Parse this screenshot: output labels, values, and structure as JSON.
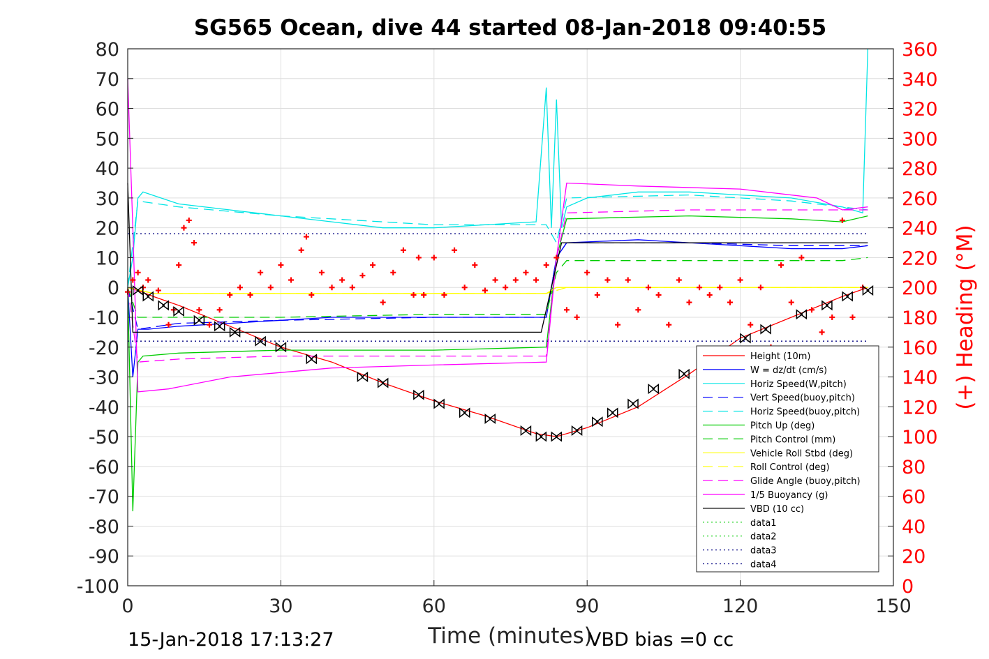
{
  "chart_data": {
    "type": "line",
    "title": "SG565 Ocean, dive 44 started 08-Jan-2018 09:40:55",
    "xlabel": "Time (minutes)",
    "ylabel": "",
    "y2label": "(+) Heading (°M)",
    "xlim": [
      0,
      150
    ],
    "ylim": [
      -100,
      80
    ],
    "y2lim": [
      0,
      360
    ],
    "x_ticks": [
      0,
      30,
      60,
      90,
      120,
      150
    ],
    "y_ticks": [
      -100,
      -90,
      -80,
      -70,
      -60,
      -50,
      -40,
      -30,
      -20,
      -10,
      0,
      10,
      20,
      30,
      40,
      50,
      60,
      70,
      80
    ],
    "y2_ticks": [
      0,
      20,
      40,
      60,
      80,
      100,
      120,
      140,
      160,
      180,
      200,
      220,
      240,
      260,
      280,
      300,
      320,
      340,
      360
    ],
    "grid": true,
    "legend_position": "bottom-right",
    "footer_left": "15-Jan-2018 17:13:27",
    "footer_right": "VBD bias =0 cc",
    "series": [
      {
        "name": "Height (10m)",
        "color": "#ff0000",
        "style": "solid",
        "x": [
          0,
          2,
          5,
          10,
          20,
          30,
          40,
          50,
          60,
          70,
          80,
          84,
          90,
          100,
          110,
          120,
          130,
          140,
          145
        ],
        "y": [
          0,
          -1,
          -3,
          -6,
          -13,
          -20,
          -25,
          -32,
          -38,
          -43,
          -49,
          -50,
          -47,
          -40,
          -29,
          -17,
          -10,
          -3,
          0
        ]
      },
      {
        "name": "W = dz/dt (cm/s)",
        "color": "#0000ff",
        "style": "solid",
        "x": [
          0,
          1,
          2,
          4,
          10,
          20,
          30,
          40,
          50,
          60,
          70,
          82,
          84,
          86,
          100,
          110,
          120,
          130,
          140,
          145
        ],
        "y": [
          0,
          -30,
          -14,
          -14,
          -13,
          -12,
          -11,
          -10,
          -10,
          -10,
          -10,
          -10,
          10,
          15,
          16,
          15,
          14,
          13,
          13,
          14
        ]
      },
      {
        "name": "Horiz Speed(W,pitch)",
        "color": "#00e5e5",
        "style": "solid",
        "x": [
          0,
          1,
          2,
          3,
          10,
          20,
          30,
          40,
          50,
          60,
          70,
          80,
          82,
          83,
          84,
          85,
          86,
          90,
          100,
          110,
          120,
          130,
          140,
          144,
          145
        ],
        "y": [
          0,
          10,
          30,
          32,
          28,
          26,
          24,
          22,
          20,
          20,
          21,
          22,
          67,
          20,
          63,
          20,
          27,
          30,
          32,
          32,
          31,
          30,
          27,
          25,
          80
        ]
      },
      {
        "name": "Vert Speed(buoy,pitch)",
        "color": "#0000ff",
        "style": "dashed",
        "x": [
          0,
          2,
          10,
          30,
          60,
          82,
          84,
          86,
          110,
          130,
          145
        ],
        "y": [
          0,
          -14,
          -12,
          -11,
          -10,
          -10,
          10,
          15,
          15,
          14,
          14
        ]
      },
      {
        "name": "Horiz Speed(buoy,pitch)",
        "color": "#00e5e5",
        "style": "dashed",
        "x": [
          0,
          2,
          10,
          30,
          60,
          82,
          84,
          86,
          110,
          130,
          145
        ],
        "y": [
          0,
          29,
          27,
          24,
          21,
          21,
          15,
          30,
          31,
          29,
          26
        ]
      },
      {
        "name": "Pitch Up (deg)",
        "color": "#00cc00",
        "style": "solid",
        "x": [
          0,
          1,
          2,
          3,
          10,
          30,
          60,
          82,
          84,
          86,
          110,
          130,
          140,
          145
        ],
        "y": [
          0,
          -75,
          -25,
          -23,
          -22,
          -21,
          -21,
          -20,
          10,
          23,
          24,
          23,
          22,
          24
        ]
      },
      {
        "name": "Pitch Control (mm)",
        "color": "#00cc00",
        "style": "dashed",
        "x": [
          0,
          2,
          30,
          60,
          82,
          84,
          86,
          110,
          140,
          145
        ],
        "y": [
          0,
          -10,
          -10,
          -9,
          -9,
          5,
          9,
          9,
          9,
          10
        ]
      },
      {
        "name": "Vehicle Roll Stbd (deg)",
        "color": "#ffff00",
        "style": "solid",
        "x": [
          0,
          5,
          30,
          60,
          82,
          84,
          86,
          110,
          140,
          145
        ],
        "y": [
          0,
          -2,
          -2,
          -2,
          -2,
          0,
          0,
          0,
          0,
          0
        ]
      },
      {
        "name": "Roll Control (deg)",
        "color": "#ffff00",
        "style": "dashed",
        "x": [
          0,
          5,
          30,
          60,
          82,
          86,
          110,
          140,
          145
        ],
        "y": [
          0,
          -2,
          -2,
          -2,
          -2,
          0,
          0,
          0,
          0
        ]
      },
      {
        "name": "Glide Angle (buoy,pitch)",
        "color": "#ff00ff",
        "style": "dashed",
        "x": [
          0,
          2,
          10,
          30,
          60,
          82,
          84,
          86,
          110,
          130,
          145
        ],
        "y": [
          0,
          -25,
          -24,
          -23,
          -23,
          -23,
          10,
          25,
          26,
          26,
          26
        ]
      },
      {
        "name": "1/5 Buoyancy (g)",
        "color": "#ff00ff",
        "style": "solid",
        "x": [
          0,
          1,
          2,
          8,
          20,
          40,
          60,
          82,
          84,
          86,
          100,
          120,
          135,
          140,
          145
        ],
        "y": [
          70,
          20,
          -35,
          -34,
          -30,
          -27,
          -26,
          -25,
          10,
          35,
          34,
          33,
          30,
          26,
          27
        ]
      },
      {
        "name": "VBD (10 cc)",
        "color": "#000000",
        "style": "solid",
        "x": [
          0,
          1,
          2,
          10,
          30,
          60,
          81,
          83,
          85,
          110,
          145
        ],
        "y": [
          35,
          -15,
          -15,
          -15,
          -15,
          -15,
          -15,
          0,
          15,
          15,
          15
        ]
      },
      {
        "name": "data1",
        "color": "#00cc00",
        "style": "dotted",
        "x": [],
        "y": []
      },
      {
        "name": "data2",
        "color": "#00cc00",
        "style": "dotted",
        "x": [],
        "y": []
      },
      {
        "name": "data3",
        "color": "#000080",
        "style": "dotted",
        "x": [
          0,
          145
        ],
        "y": [
          18,
          18
        ]
      },
      {
        "name": "data4",
        "color": "#000080",
        "style": "dotted",
        "x": [
          0,
          145
        ],
        "y": [
          -18,
          -18
        ]
      }
    ],
    "heading_marker_series": {
      "axis": "right",
      "marker": "+",
      "color": "#ff0000",
      "x": [
        0,
        1,
        2,
        3,
        4,
        6,
        8,
        9,
        10,
        11,
        12,
        13,
        14,
        16,
        18,
        20,
        22,
        24,
        26,
        28,
        30,
        32,
        34,
        35,
        36,
        38,
        40,
        42,
        44,
        46,
        48,
        50,
        52,
        54,
        56,
        57,
        58,
        60,
        62,
        64,
        66,
        68,
        70,
        72,
        74,
        76,
        78,
        80,
        82,
        84,
        86,
        88,
        90,
        92,
        94,
        96,
        98,
        100,
        102,
        104,
        106,
        108,
        110,
        112,
        114,
        116,
        118,
        120,
        122,
        124,
        126,
        128,
        130,
        132,
        134,
        136,
        138,
        140,
        142,
        144
      ],
      "y": [
        197,
        205,
        210,
        200,
        205,
        198,
        175,
        185,
        215,
        240,
        245,
        230,
        185,
        175,
        185,
        195,
        200,
        195,
        210,
        200,
        215,
        205,
        225,
        234,
        195,
        210,
        200,
        205,
        200,
        208,
        215,
        190,
        210,
        225,
        195,
        220,
        195,
        220,
        195,
        225,
        200,
        215,
        198,
        205,
        200,
        205,
        210,
        205,
        215,
        220,
        185,
        180,
        210,
        195,
        205,
        175,
        205,
        185,
        200,
        195,
        175,
        205,
        190,
        200,
        195,
        200,
        190,
        205,
        175,
        200,
        160,
        215,
        190,
        220,
        185,
        170,
        180,
        245,
        180,
        200
      ]
    },
    "dive_markers": {
      "color": "#000000",
      "x": [
        2,
        4,
        7,
        10,
        14,
        18,
        21,
        26,
        30,
        36,
        46,
        50,
        57,
        61,
        66,
        71,
        78,
        81,
        84,
        88,
        92,
        95,
        99,
        103,
        109,
        121,
        125,
        132,
        137,
        141,
        145
      ],
      "y": [
        -1,
        -3,
        -6,
        -8,
        -11,
        -13,
        -15,
        -18,
        -20,
        -24,
        -30,
        -32,
        -36,
        -39,
        -42,
        -44,
        -48,
        -50,
        -50,
        -48,
        -45,
        -42,
        -39,
        -34,
        -29,
        -17,
        -14,
        -9,
        -6,
        -3,
        -1
      ]
    }
  }
}
